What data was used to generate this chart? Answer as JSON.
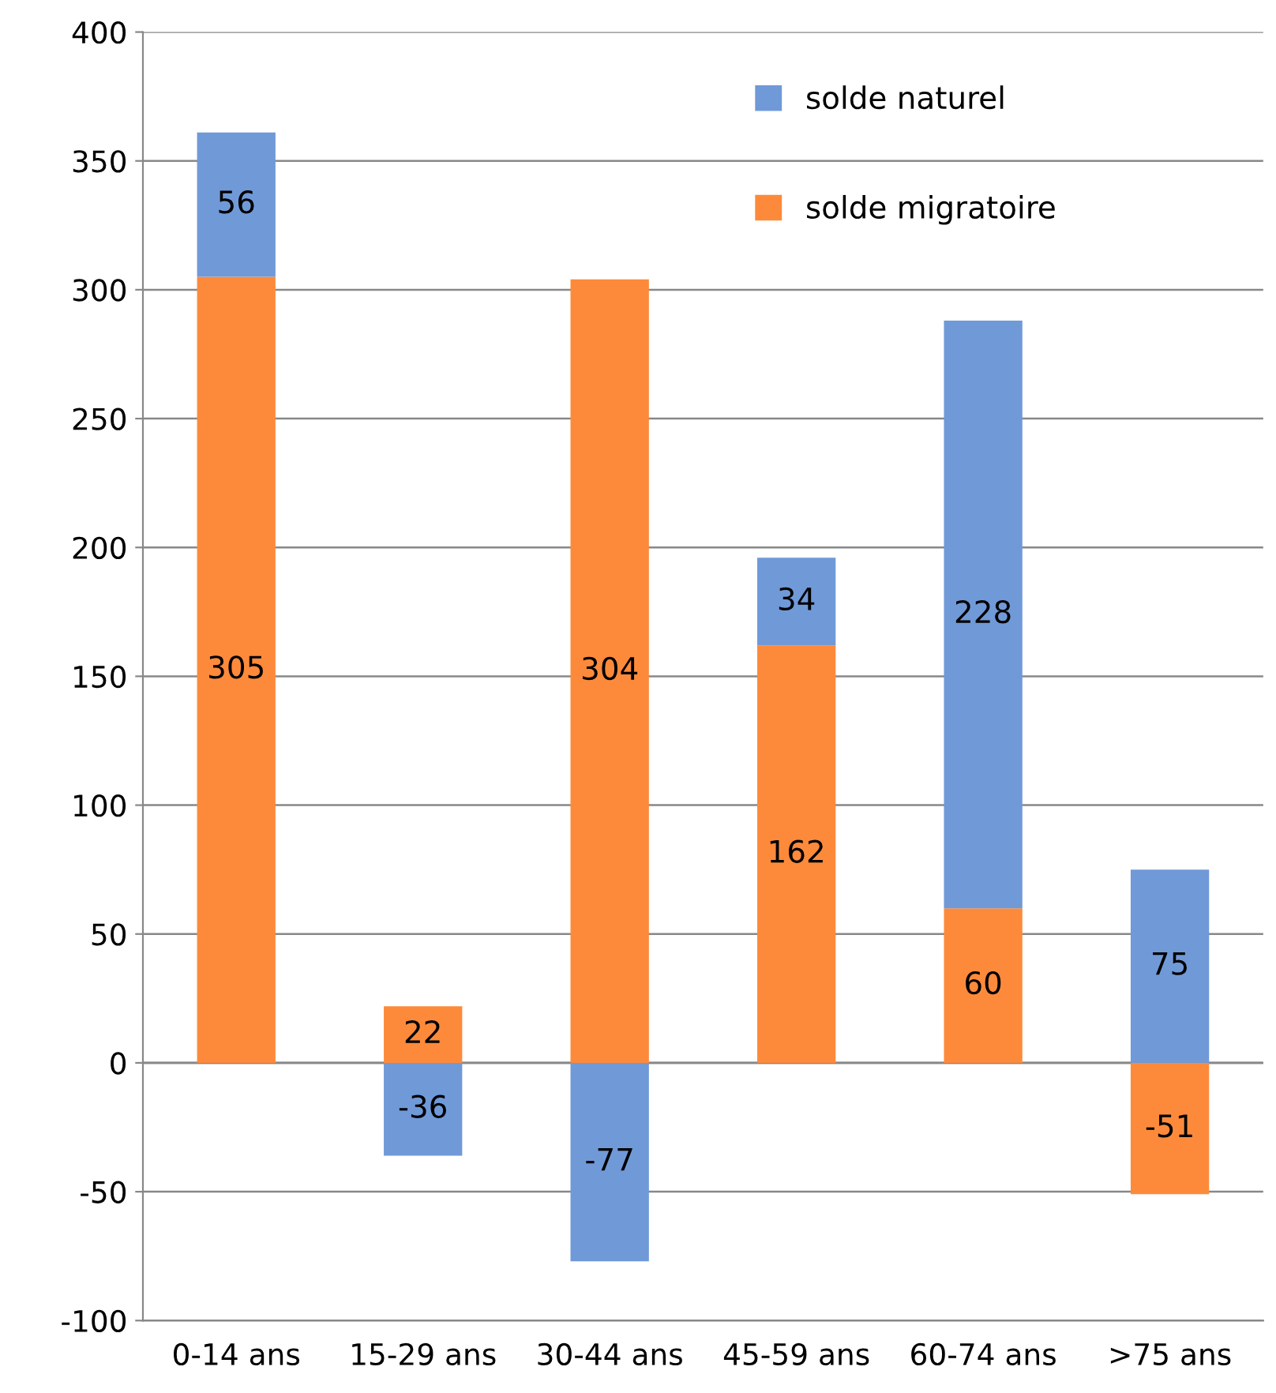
{
  "chart_data": {
    "type": "bar",
    "stacked": true,
    "categories": [
      "0-14 ans",
      "15-29 ans",
      "30-44 ans",
      "45-59 ans",
      "60-74 ans",
      ">75 ans"
    ],
    "series": [
      {
        "name": "solde migratoire",
        "color": "#fd8a3b",
        "values": [
          305,
          22,
          304,
          162,
          60,
          -51
        ]
      },
      {
        "name": "solde naturel",
        "color": "#7099d8",
        "values": [
          56,
          -36,
          -77,
          34,
          228,
          75
        ]
      }
    ],
    "ylim": [
      -100,
      400
    ],
    "yticks": [
      -100,
      -50,
      0,
      50,
      100,
      150,
      200,
      250,
      300,
      350,
      400
    ],
    "grid": "y",
    "legend": "top right",
    "data_labels": true
  }
}
